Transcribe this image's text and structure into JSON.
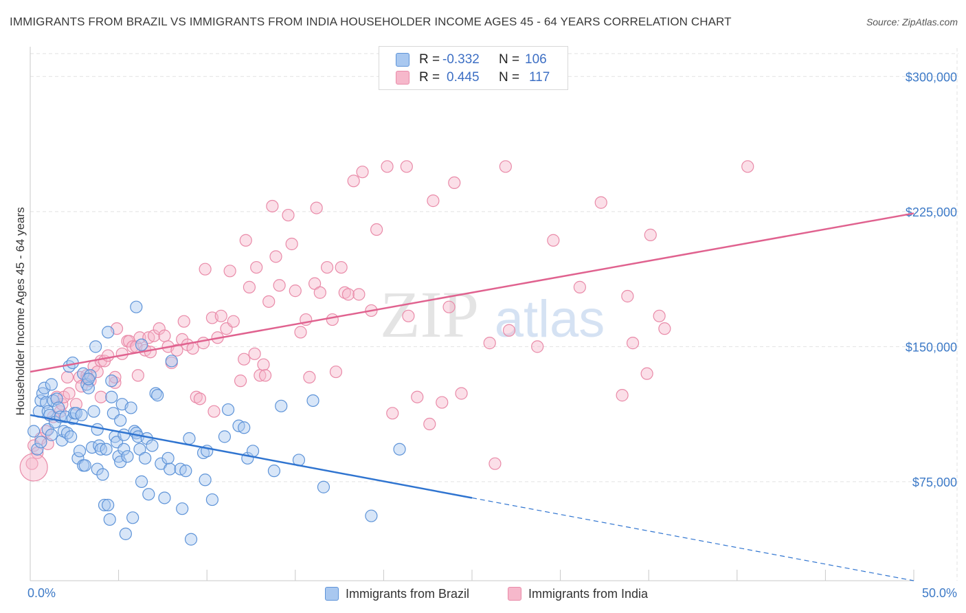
{
  "header": {
    "title": "IMMIGRANTS FROM BRAZIL VS IMMIGRANTS FROM INDIA HOUSEHOLDER INCOME AGES 45 - 64 YEARS CORRELATION CHART",
    "source": "Source: ZipAtlas.com"
  },
  "legend": {
    "brazil": {
      "r_label": "R =",
      "r_value": "-0.332",
      "n_label": "N =",
      "n_value": "106"
    },
    "india": {
      "r_label": "R =",
      "r_value": "0.445",
      "n_label": "N =",
      "n_value": "117"
    }
  },
  "bottom_legend": {
    "brazil": "Immigrants from Brazil",
    "india": "Immigrants from India"
  },
  "watermark": {
    "zip": "ZIP",
    "atlas": "atlas"
  },
  "colors": {
    "brazil_fill": "#a9c8f0",
    "brazil_stroke": "#5d93d8",
    "brazil_line": "#2f74d0",
    "india_fill": "#f6b8cb",
    "india_stroke": "#e98aa8",
    "india_line": "#e0628f",
    "tick_label": "#3d7ac7",
    "grid": "#e2e2e2"
  },
  "chart_data": {
    "type": "scatter",
    "title": "IMMIGRANTS FROM BRAZIL VS IMMIGRANTS FROM INDIA HOUSEHOLDER INCOME AGES 45 - 64 YEARS CORRELATION CHART",
    "xlabel": "",
    "ylabel": "Householder Income Ages 45 - 64 years",
    "xlim": [
      0,
      50
    ],
    "ylim": [
      20000,
      315000
    ],
    "x_tick_labels": [
      "0.0%",
      "50.0%"
    ],
    "y_ticks": [
      75000,
      150000,
      225000,
      300000
    ],
    "y_tick_labels": [
      "$75,000",
      "$150,000",
      "$225,000",
      "$300,000"
    ],
    "grid": true,
    "legend_position": "top-center",
    "series": [
      {
        "name": "Immigrants from Brazil",
        "r": -0.332,
        "n": 106,
        "trend": {
          "x": [
            0,
            25,
            50
          ],
          "y": [
            112000,
            66000,
            20000
          ],
          "solid_until_x": 25
        },
        "points": [
          [
            0.2,
            103000
          ],
          [
            0.4,
            93000
          ],
          [
            0.5,
            114000
          ],
          [
            0.6,
            120000
          ],
          [
            0.6,
            97000
          ],
          [
            0.7,
            124000
          ],
          [
            0.8,
            127000
          ],
          [
            0.9,
            119000
          ],
          [
            1.0,
            104000
          ],
          [
            1.0,
            114000
          ],
          [
            1.1,
            112000
          ],
          [
            1.2,
            101000
          ],
          [
            1.2,
            129000
          ],
          [
            1.3,
            120000
          ],
          [
            1.4,
            108000
          ],
          [
            1.5,
            121000
          ],
          [
            1.6,
            116000
          ],
          [
            1.7,
            111000
          ],
          [
            1.8,
            98000
          ],
          [
            1.9,
            103000
          ],
          [
            2.0,
            111000
          ],
          [
            2.1,
            102000
          ],
          [
            2.2,
            139000
          ],
          [
            2.3,
            100000
          ],
          [
            2.4,
            110000
          ],
          [
            2.4,
            141000
          ],
          [
            2.5,
            113000
          ],
          [
            2.6,
            113000
          ],
          [
            2.7,
            88000
          ],
          [
            2.8,
            92000
          ],
          [
            2.9,
            112000
          ],
          [
            3.0,
            84000
          ],
          [
            3.0,
            135000
          ],
          [
            3.1,
            84000
          ],
          [
            3.2,
            129000
          ],
          [
            3.3,
            127000
          ],
          [
            3.4,
            134000
          ],
          [
            3.5,
            94000
          ],
          [
            3.6,
            114000
          ],
          [
            3.7,
            150000
          ],
          [
            3.8,
            82000
          ],
          [
            3.8,
            104000
          ],
          [
            3.9,
            95000
          ],
          [
            4.0,
            93000
          ],
          [
            4.1,
            79000
          ],
          [
            4.2,
            62000
          ],
          [
            4.3,
            93000
          ],
          [
            4.4,
            158000
          ],
          [
            4.4,
            62000
          ],
          [
            4.5,
            54000
          ],
          [
            4.6,
            131000
          ],
          [
            4.6,
            122000
          ],
          [
            4.7,
            113000
          ],
          [
            4.8,
            100000
          ],
          [
            4.9,
            97000
          ],
          [
            5.0,
            89000
          ],
          [
            5.1,
            86000
          ],
          [
            5.1,
            109000
          ],
          [
            5.2,
            118000
          ],
          [
            5.3,
            101000
          ],
          [
            5.3,
            93000
          ],
          [
            5.4,
            46000
          ],
          [
            5.5,
            89000
          ],
          [
            5.7,
            116000
          ],
          [
            5.8,
            55000
          ],
          [
            5.9,
            103000
          ],
          [
            6.0,
            102000
          ],
          [
            6.0,
            172000
          ],
          [
            6.1,
            100000
          ],
          [
            6.2,
            93000
          ],
          [
            6.3,
            151000
          ],
          [
            6.3,
            75000
          ],
          [
            6.5,
            88000
          ],
          [
            6.6,
            99000
          ],
          [
            6.7,
            68000
          ],
          [
            6.9,
            95000
          ],
          [
            7.1,
            124000
          ],
          [
            7.2,
            123000
          ],
          [
            7.4,
            85000
          ],
          [
            7.6,
            66000
          ],
          [
            7.8,
            88000
          ],
          [
            7.9,
            82000
          ],
          [
            8.0,
            142000
          ],
          [
            8.5,
            82000
          ],
          [
            8.6,
            60000
          ],
          [
            8.8,
            81000
          ],
          [
            9.0,
            99000
          ],
          [
            9.1,
            43000
          ],
          [
            9.8,
            91000
          ],
          [
            9.9,
            76000
          ],
          [
            10.0,
            92000
          ],
          [
            10.3,
            65000
          ],
          [
            11.0,
            100000
          ],
          [
            11.2,
            115000
          ],
          [
            11.8,
            106000
          ],
          [
            12.1,
            105000
          ],
          [
            12.3,
            88000
          ],
          [
            12.6,
            92000
          ],
          [
            13.8,
            81000
          ],
          [
            14.2,
            117000
          ],
          [
            15.2,
            87000
          ],
          [
            16.0,
            120000
          ],
          [
            16.6,
            72000
          ],
          [
            19.3,
            56000
          ],
          [
            20.9,
            93000
          ],
          [
            3.3,
            132000
          ]
        ]
      },
      {
        "name": "Immigrants from India",
        "r": 0.445,
        "n": 117,
        "trend": {
          "x": [
            0,
            50
          ],
          "y": [
            136000,
            224000
          ]
        },
        "points": [
          [
            0.1,
            85000
          ],
          [
            0.2,
            95000
          ],
          [
            0.4,
            91000
          ],
          [
            0.6,
            99000
          ],
          [
            0.9,
            103000
          ],
          [
            1.0,
            96000
          ],
          [
            1.5,
            122000
          ],
          [
            1.7,
            114000
          ],
          [
            1.8,
            118000
          ],
          [
            1.9,
            122000
          ],
          [
            2.1,
            133000
          ],
          [
            2.2,
            124000
          ],
          [
            2.6,
            118000
          ],
          [
            2.8,
            133000
          ],
          [
            2.9,
            128000
          ],
          [
            3.2,
            134000
          ],
          [
            3.4,
            131000
          ],
          [
            3.6,
            139000
          ],
          [
            3.8,
            136000
          ],
          [
            4.0,
            122000
          ],
          [
            4.0,
            142000
          ],
          [
            4.2,
            142000
          ],
          [
            4.4,
            145000
          ],
          [
            4.8,
            130000
          ],
          [
            4.8,
            133000
          ],
          [
            4.9,
            160000
          ],
          [
            5.2,
            146000
          ],
          [
            5.5,
            153000
          ],
          [
            5.6,
            153000
          ],
          [
            5.8,
            150000
          ],
          [
            6.0,
            150000
          ],
          [
            6.1,
            134000
          ],
          [
            6.2,
            155000
          ],
          [
            6.5,
            148000
          ],
          [
            6.7,
            155000
          ],
          [
            6.8,
            147000
          ],
          [
            7.0,
            156000
          ],
          [
            7.3,
            160000
          ],
          [
            7.6,
            156000
          ],
          [
            7.8,
            150000
          ],
          [
            8.0,
            141000
          ],
          [
            8.3,
            148000
          ],
          [
            8.6,
            154000
          ],
          [
            8.7,
            164000
          ],
          [
            8.9,
            151000
          ],
          [
            9.2,
            149000
          ],
          [
            9.4,
            122000
          ],
          [
            9.6,
            121000
          ],
          [
            9.8,
            152000
          ],
          [
            9.9,
            193000
          ],
          [
            10.3,
            166000
          ],
          [
            10.4,
            114000
          ],
          [
            10.6,
            155000
          ],
          [
            10.8,
            167000
          ],
          [
            11.1,
            160000
          ],
          [
            11.3,
            192000
          ],
          [
            11.5,
            164000
          ],
          [
            11.9,
            131000
          ],
          [
            12.1,
            143000
          ],
          [
            12.2,
            209000
          ],
          [
            12.4,
            183000
          ],
          [
            12.7,
            146000
          ],
          [
            12.8,
            194000
          ],
          [
            13.0,
            134000
          ],
          [
            13.2,
            140000
          ],
          [
            13.3,
            134000
          ],
          [
            13.5,
            175000
          ],
          [
            13.7,
            228000
          ],
          [
            13.9,
            200000
          ],
          [
            14.1,
            184000
          ],
          [
            14.6,
            223000
          ],
          [
            14.8,
            207000
          ],
          [
            15.0,
            181000
          ],
          [
            15.3,
            158000
          ],
          [
            15.6,
            165000
          ],
          [
            15.8,
            133000
          ],
          [
            16.1,
            185000
          ],
          [
            16.2,
            227000
          ],
          [
            16.4,
            180000
          ],
          [
            16.8,
            194000
          ],
          [
            17.1,
            165000
          ],
          [
            17.3,
            136000
          ],
          [
            17.6,
            194000
          ],
          [
            17.8,
            180000
          ],
          [
            18.0,
            179000
          ],
          [
            18.3,
            242000
          ],
          [
            18.6,
            179000
          ],
          [
            18.8,
            247000
          ],
          [
            19.3,
            170000
          ],
          [
            19.6,
            215000
          ],
          [
            20.2,
            250000
          ],
          [
            20.5,
            113000
          ],
          [
            21.3,
            250000
          ],
          [
            21.4,
            167000
          ],
          [
            21.9,
            122000
          ],
          [
            22.6,
            107000
          ],
          [
            22.8,
            231000
          ],
          [
            23.3,
            119000
          ],
          [
            23.7,
            172000
          ],
          [
            24.0,
            241000
          ],
          [
            24.4,
            124000
          ],
          [
            26.0,
            152000
          ],
          [
            26.3,
            85000
          ],
          [
            26.9,
            250000
          ],
          [
            27.1,
            159000
          ],
          [
            28.7,
            150000
          ],
          [
            29.6,
            209000
          ],
          [
            31.1,
            183000
          ],
          [
            32.3,
            230000
          ],
          [
            33.5,
            123000
          ],
          [
            33.8,
            178000
          ],
          [
            34.1,
            152000
          ],
          [
            34.9,
            135000
          ],
          [
            35.1,
            212000
          ],
          [
            35.6,
            167000
          ],
          [
            35.9,
            160000
          ],
          [
            40.6,
            250000
          ],
          [
            1.3,
            111000
          ],
          [
            3.2,
            132000
          ]
        ]
      }
    ]
  }
}
